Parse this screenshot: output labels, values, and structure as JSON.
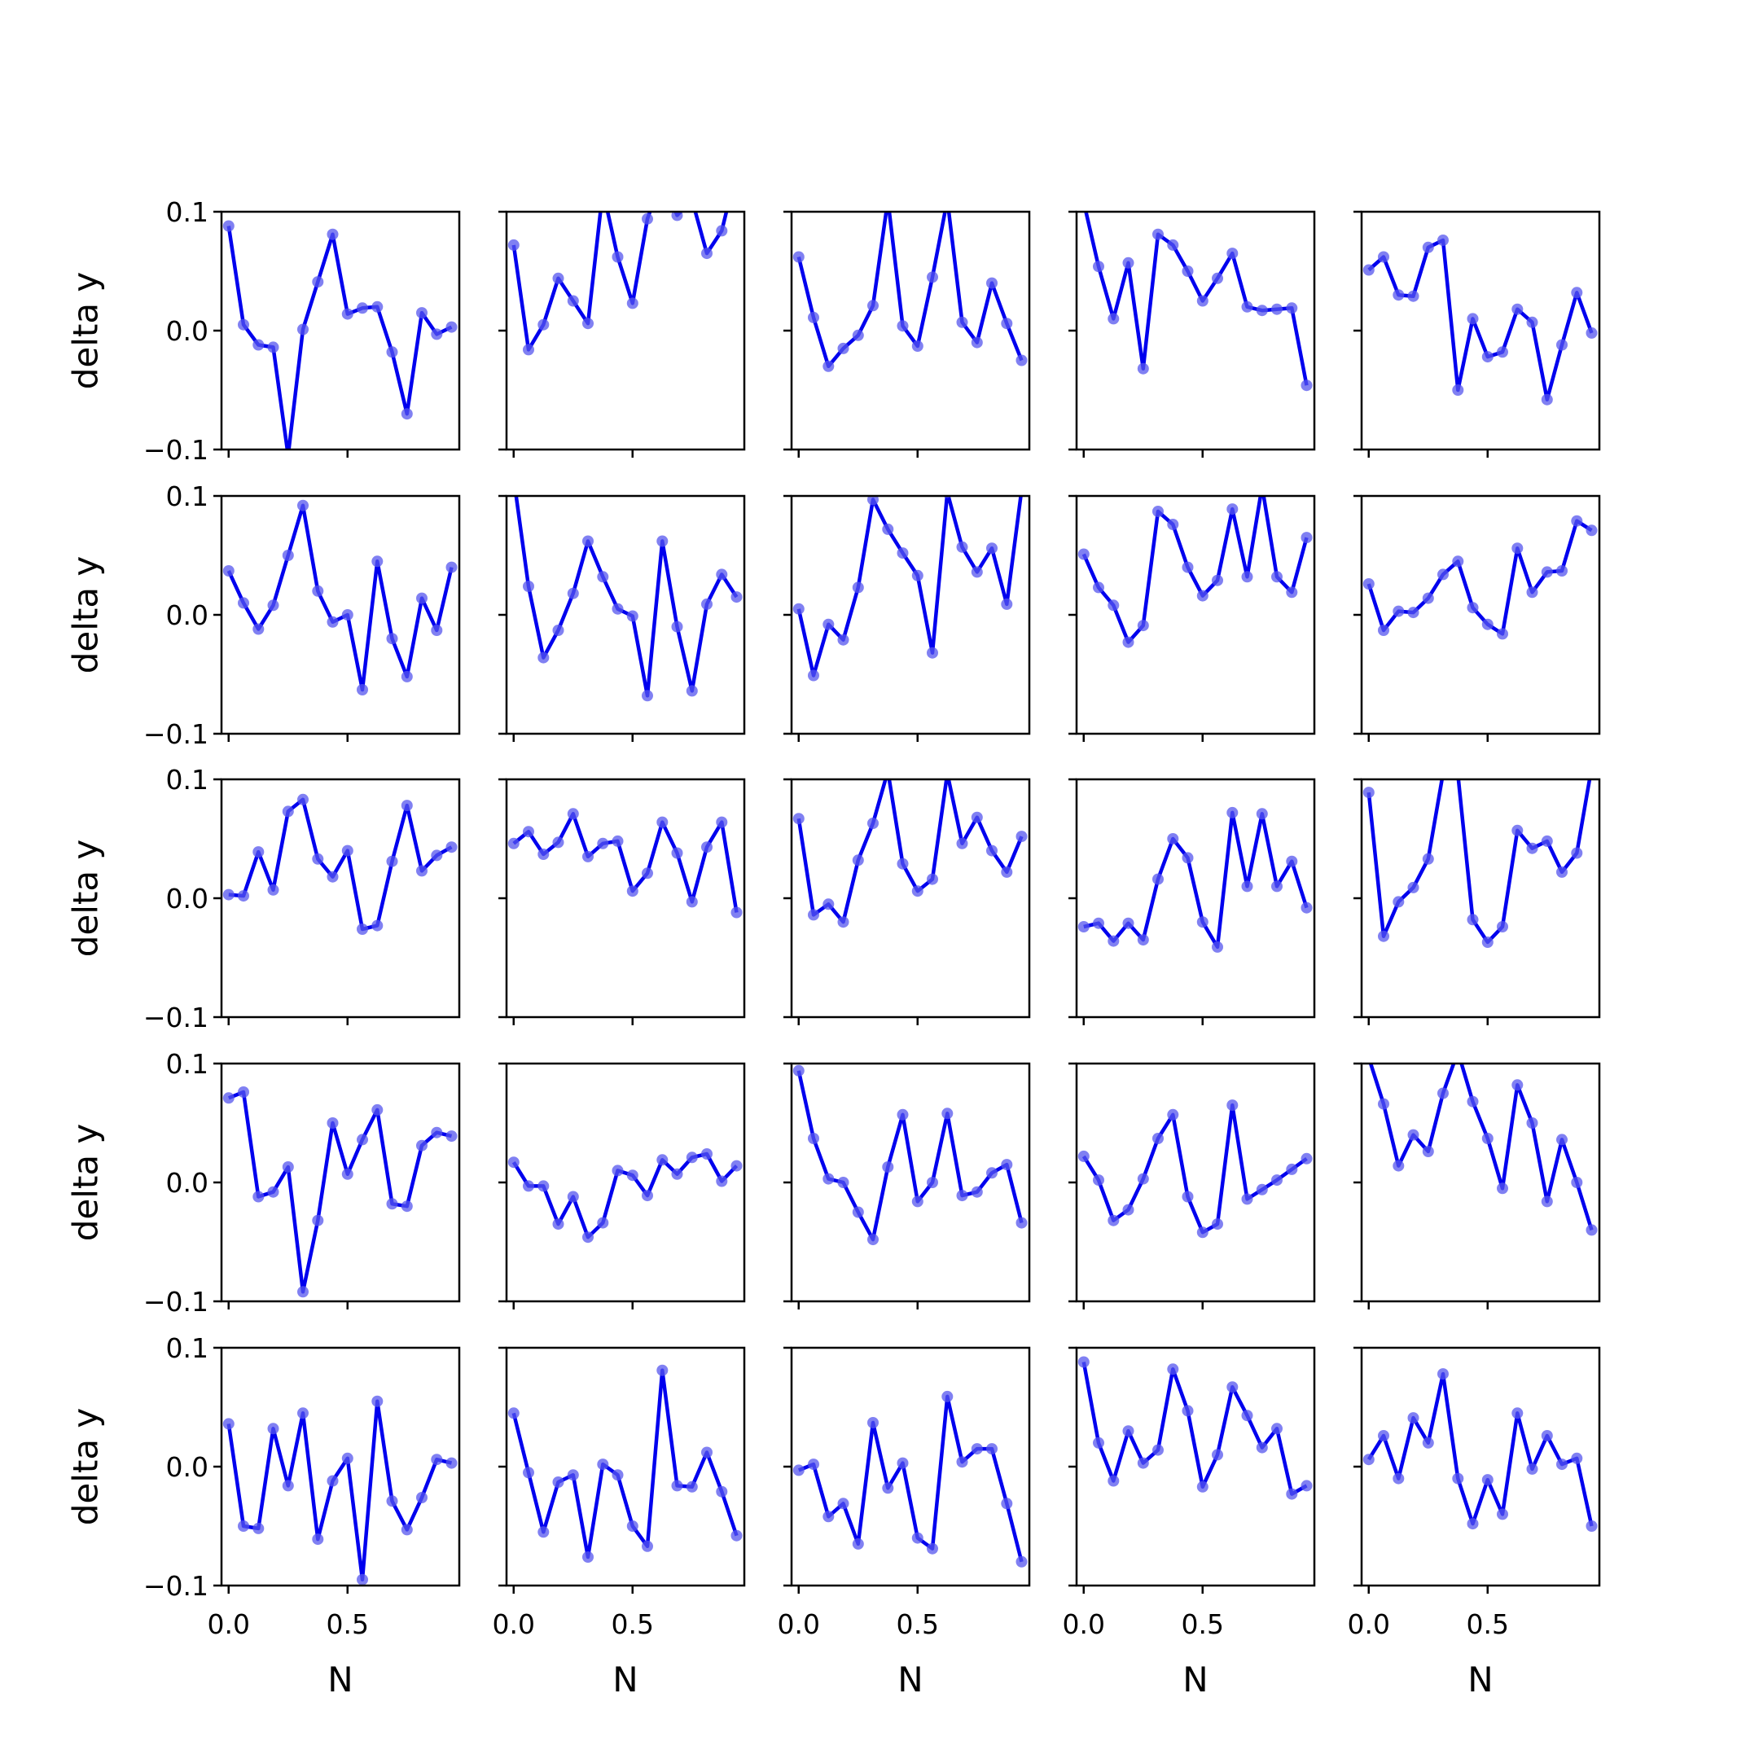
{
  "colors": {
    "line": "#0000ee",
    "marker": "#5555ee",
    "frame": "#000000"
  },
  "chart_data": {
    "type": "line",
    "layout": "grid",
    "rows": 5,
    "cols": 5,
    "xlabel": "N",
    "ylabel": "delta y",
    "xlim": [
      -0.03,
      0.97
    ],
    "ylim": [
      -0.1,
      0.1
    ],
    "xticks": [
      0.0,
      0.5
    ],
    "xtick_labels": [
      "0.0",
      "0.5"
    ],
    "yticks": [
      -0.1,
      0.0,
      0.1
    ],
    "ytick_labels": [
      "−0.1",
      "0.0",
      "0.1"
    ],
    "x": [
      0.0,
      0.0625,
      0.125,
      0.1875,
      0.25,
      0.3125,
      0.375,
      0.4375,
      0.5,
      0.5625,
      0.625,
      0.6875,
      0.75,
      0.8125,
      0.875,
      0.9375
    ],
    "series": [
      {
        "values": [
          0.088,
          0.005,
          -0.012,
          -0.014,
          -0.105,
          0.001,
          0.041,
          0.081,
          0.014,
          0.019,
          0.02,
          -0.018,
          -0.07,
          0.015,
          -0.003,
          0.003
        ]
      },
      {
        "values": [
          0.072,
          -0.016,
          0.005,
          0.044,
          0.025,
          0.006,
          0.118,
          0.062,
          0.023,
          0.094,
          0.13,
          0.097,
          0.11,
          0.065,
          0.084,
          0.135
        ]
      },
      {
        "values": [
          0.062,
          0.011,
          -0.03,
          -0.015,
          -0.004,
          0.021,
          0.11,
          0.004,
          -0.013,
          0.045,
          0.11,
          0.007,
          -0.01,
          0.04,
          0.006,
          -0.025
        ]
      },
      {
        "values": [
          0.108,
          0.054,
          0.01,
          0.057,
          -0.032,
          0.081,
          0.072,
          0.05,
          0.025,
          0.044,
          0.065,
          0.02,
          0.017,
          0.018,
          0.019,
          -0.046
        ]
      },
      {
        "values": [
          0.051,
          0.062,
          0.03,
          0.029,
          0.07,
          0.076,
          -0.05,
          0.01,
          -0.022,
          -0.018,
          0.018,
          0.007,
          -0.058,
          -0.012,
          0.032,
          -0.002
        ]
      },
      {
        "values": [
          0.037,
          0.01,
          -0.012,
          0.008,
          0.05,
          0.092,
          0.02,
          -0.006,
          0.0,
          -0.063,
          0.045,
          -0.02,
          -0.052,
          0.014,
          -0.013,
          0.04
        ]
      },
      {
        "values": [
          0.115,
          0.024,
          -0.036,
          -0.013,
          0.018,
          0.062,
          0.032,
          0.005,
          -0.001,
          -0.068,
          0.062,
          -0.01,
          -0.064,
          0.009,
          0.034,
          0.015
        ]
      },
      {
        "values": [
          0.005,
          -0.051,
          -0.008,
          -0.021,
          0.023,
          0.097,
          0.072,
          0.052,
          0.033,
          -0.032,
          0.103,
          0.057,
          0.036,
          0.056,
          0.009,
          0.105
        ]
      },
      {
        "values": [
          0.051,
          0.023,
          0.008,
          -0.023,
          -0.009,
          0.087,
          0.076,
          0.04,
          0.016,
          0.029,
          0.089,
          0.032,
          0.108,
          0.032,
          0.019,
          0.065
        ]
      },
      {
        "values": [
          0.026,
          -0.013,
          0.003,
          0.002,
          0.014,
          0.034,
          0.045,
          0.006,
          -0.008,
          -0.016,
          0.056,
          0.019,
          0.036,
          0.037,
          0.079,
          0.071
        ]
      },
      {
        "values": [
          0.003,
          0.002,
          0.039,
          0.007,
          0.073,
          0.083,
          0.033,
          0.018,
          0.04,
          -0.026,
          -0.023,
          0.031,
          0.078,
          0.023,
          0.036,
          0.043
        ]
      },
      {
        "values": [
          0.046,
          0.056,
          0.037,
          0.047,
          0.071,
          0.035,
          0.046,
          0.048,
          0.006,
          0.021,
          0.064,
          0.038,
          -0.003,
          0.043,
          0.064,
          -0.012
        ]
      },
      {
        "values": [
          0.067,
          -0.014,
          -0.005,
          -0.02,
          0.032,
          0.063,
          0.107,
          0.029,
          0.006,
          0.016,
          0.105,
          0.046,
          0.068,
          0.04,
          0.022,
          0.052
        ]
      },
      {
        "values": [
          -0.024,
          -0.021,
          -0.036,
          -0.021,
          -0.035,
          0.016,
          0.05,
          0.034,
          -0.02,
          -0.041,
          0.072,
          0.01,
          0.071,
          0.01,
          0.031,
          -0.008
        ]
      },
      {
        "values": [
          0.089,
          -0.032,
          -0.003,
          0.009,
          0.033,
          0.105,
          0.104,
          -0.018,
          -0.037,
          -0.024,
          0.057,
          0.042,
          0.048,
          0.022,
          0.038,
          0.11
        ]
      },
      {
        "values": [
          0.071,
          0.076,
          -0.012,
          -0.008,
          0.013,
          -0.092,
          -0.032,
          0.05,
          0.007,
          0.036,
          0.061,
          -0.018,
          -0.02,
          0.031,
          0.042,
          0.039
        ]
      },
      {
        "values": [
          0.017,
          -0.003,
          -0.003,
          -0.035,
          -0.012,
          -0.046,
          -0.034,
          0.01,
          0.006,
          -0.011,
          0.019,
          0.007,
          0.021,
          0.024,
          0.001,
          0.014
        ]
      },
      {
        "values": [
          0.094,
          0.037,
          0.003,
          0.0,
          -0.025,
          -0.048,
          0.013,
          0.057,
          -0.016,
          0.0,
          0.058,
          -0.011,
          -0.008,
          0.008,
          0.015,
          -0.034
        ]
      },
      {
        "values": [
          0.022,
          0.002,
          -0.032,
          -0.023,
          0.003,
          0.037,
          0.057,
          -0.012,
          -0.042,
          -0.035,
          0.065,
          -0.014,
          -0.006,
          0.002,
          0.011,
          0.02
        ]
      },
      {
        "values": [
          0.105,
          0.066,
          0.014,
          0.04,
          0.026,
          0.075,
          0.11,
          0.068,
          0.037,
          -0.005,
          0.082,
          0.05,
          -0.016,
          0.036,
          0.0,
          -0.04
        ]
      },
      {
        "values": [
          0.036,
          -0.05,
          -0.052,
          0.032,
          -0.016,
          0.045,
          -0.061,
          -0.012,
          0.007,
          -0.095,
          0.055,
          -0.029,
          -0.053,
          -0.026,
          0.006,
          0.003
        ]
      },
      {
        "values": [
          0.045,
          -0.005,
          -0.055,
          -0.013,
          -0.007,
          -0.076,
          0.002,
          -0.007,
          -0.05,
          -0.067,
          0.081,
          -0.016,
          -0.017,
          0.012,
          -0.021,
          -0.058
        ]
      },
      {
        "values": [
          -0.003,
          0.002,
          -0.042,
          -0.031,
          -0.065,
          0.037,
          -0.018,
          0.003,
          -0.06,
          -0.069,
          0.059,
          0.004,
          0.015,
          0.015,
          -0.031,
          -0.08
        ]
      },
      {
        "values": [
          0.088,
          0.02,
          -0.012,
          0.03,
          0.003,
          0.014,
          0.082,
          0.047,
          -0.017,
          0.01,
          0.067,
          0.043,
          0.016,
          0.032,
          -0.023,
          -0.016
        ]
      },
      {
        "values": [
          0.006,
          0.026,
          -0.01,
          0.041,
          0.02,
          0.078,
          -0.01,
          -0.048,
          -0.011,
          -0.04,
          0.045,
          -0.002,
          0.026,
          0.002,
          0.007,
          -0.05
        ]
      }
    ]
  }
}
